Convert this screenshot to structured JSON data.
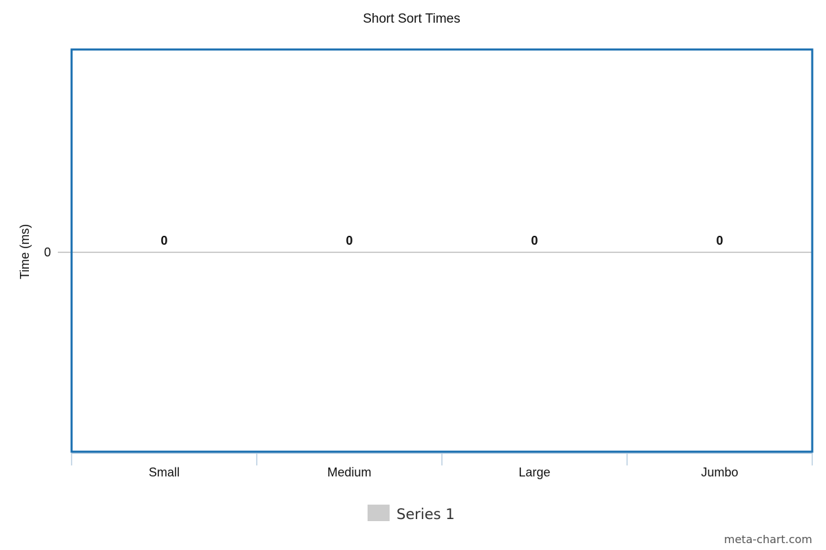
{
  "chart_data": {
    "type": "bar",
    "title": "Short Sort Times",
    "xlabel": "",
    "ylabel": "Time (ms)",
    "categories": [
      "Small",
      "Medium",
      "Large",
      "Jumbo"
    ],
    "y_ticks": [
      "0"
    ],
    "series": [
      {
        "name": "Series 1",
        "values": [
          0,
          0,
          0,
          0
        ],
        "data_labels": [
          "0",
          "0",
          "0",
          "0"
        ],
        "color": "#cccccc"
      }
    ],
    "grid": false,
    "legend": "bottom-center",
    "plot_border_color": "#1a6fb0",
    "axis_color": "#b8cde0"
  },
  "credit": "meta-chart.com"
}
